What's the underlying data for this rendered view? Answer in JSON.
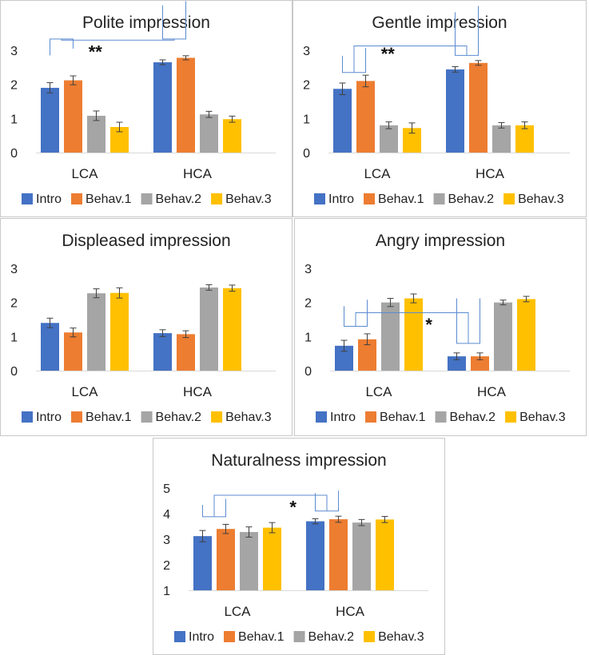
{
  "colors": {
    "Intro": "#4472C4",
    "Behav.1": "#ED7D31",
    "Behav.2": "#A5A5A5",
    "Behav.3": "#FFC000",
    "bracket": "#5B8BD0",
    "errorbar": "#404040"
  },
  "chart_data": [
    {
      "type": "bar",
      "title": "Polite impression",
      "categories": [
        "LCA",
        "HCA"
      ],
      "ylim": [
        0,
        3
      ],
      "yticks": [
        0,
        1,
        2,
        3
      ],
      "legend_position": "bottom",
      "series": [
        {
          "name": "Intro",
          "values": [
            1.9,
            2.65
          ],
          "errors": [
            0.15,
            0.07
          ]
        },
        {
          "name": "Behav.1",
          "values": [
            2.12,
            2.78
          ],
          "errors": [
            0.13,
            0.06
          ]
        },
        {
          "name": "Behav.2",
          "values": [
            1.08,
            1.12
          ],
          "errors": [
            0.14,
            0.09
          ]
        },
        {
          "name": "Behav.3",
          "values": [
            0.75,
            0.98
          ],
          "errors": [
            0.14,
            0.09
          ]
        }
      ],
      "annotation": {
        "text": "**",
        "ga": 0.8,
        "gb": 1.6,
        "ma": 3.33,
        "mb": 3.33,
        "bt": 3.3,
        "sx": 0.6,
        "sy": 3.1
      }
    },
    {
      "type": "bar",
      "title": "Gentle impression",
      "categories": [
        "LCA",
        "HCA"
      ],
      "ylim": [
        0,
        3
      ],
      "yticks": [
        0,
        1,
        2,
        3
      ],
      "legend_position": "bottom",
      "series": [
        {
          "name": "Intro",
          "values": [
            1.87,
            2.44
          ],
          "errors": [
            0.17,
            0.08
          ]
        },
        {
          "name": "Behav.1",
          "values": [
            2.1,
            2.63
          ],
          "errors": [
            0.17,
            0.07
          ]
        },
        {
          "name": "Behav.2",
          "values": [
            0.8,
            0.8
          ],
          "errors": [
            0.1,
            0.08
          ]
        },
        {
          "name": "Behav.3",
          "values": [
            0.72,
            0.8
          ],
          "errors": [
            0.15,
            0.1
          ]
        }
      ],
      "annotation": {
        "text": "**",
        "ga": 0.8,
        "gb": 1.6,
        "ma": 2.35,
        "mb": 2.85,
        "bt": 3.13,
        "sx": 0.6,
        "sy": 3.05
      }
    },
    {
      "type": "bar",
      "title": "Displeased impression",
      "categories": [
        "LCA",
        "HCA"
      ],
      "ylim": [
        0,
        3
      ],
      "yticks": [
        0,
        1,
        2,
        3
      ],
      "legend_position": "bottom",
      "series": [
        {
          "name": "Intro",
          "values": [
            1.4,
            1.1
          ],
          "errors": [
            0.14,
            0.1
          ]
        },
        {
          "name": "Behav.1",
          "values": [
            1.12,
            1.07
          ],
          "errors": [
            0.13,
            0.1
          ]
        },
        {
          "name": "Behav.2",
          "values": [
            2.27,
            2.44
          ],
          "errors": [
            0.13,
            0.08
          ]
        },
        {
          "name": "Behav.3",
          "values": [
            2.28,
            2.42
          ],
          "errors": [
            0.15,
            0.09
          ]
        }
      ]
    },
    {
      "type": "bar",
      "title": "Angry impression",
      "categories": [
        "LCA",
        "HCA"
      ],
      "ylim": [
        0,
        3
      ],
      "yticks": [
        0,
        1,
        2,
        3
      ],
      "legend_position": "bottom",
      "series": [
        {
          "name": "Intro",
          "values": [
            0.73,
            0.42
          ],
          "errors": [
            0.16,
            0.1
          ]
        },
        {
          "name": "Behav.1",
          "values": [
            0.92,
            0.42
          ],
          "errors": [
            0.16,
            0.1
          ]
        },
        {
          "name": "Behav.2",
          "values": [
            2.0,
            2.0
          ],
          "errors": [
            0.12,
            0.07
          ]
        },
        {
          "name": "Behav.3",
          "values": [
            2.12,
            2.1
          ],
          "errors": [
            0.13,
            0.08
          ]
        }
      ],
      "annotation": {
        "text": "*",
        "ga": 1.0,
        "gb": 1.6,
        "ma": 1.3,
        "mb": 0.8,
        "bt": 1.7,
        "sx": 1.3,
        "sy": 1.5
      }
    },
    {
      "type": "bar",
      "title": "Naturalness impression",
      "categories": [
        "LCA",
        "HCA"
      ],
      "ylim": [
        1,
        5
      ],
      "yticks": [
        1,
        2,
        3,
        4,
        5
      ],
      "legend_position": "bottom",
      "series": [
        {
          "name": "Intro",
          "values": [
            3.12,
            3.7
          ],
          "errors": [
            0.22,
            0.1
          ]
        },
        {
          "name": "Behav.1",
          "values": [
            3.4,
            3.78
          ],
          "errors": [
            0.18,
            0.12
          ]
        },
        {
          "name": "Behav.2",
          "values": [
            3.28,
            3.65
          ],
          "errors": [
            0.2,
            0.12
          ]
        },
        {
          "name": "Behav.3",
          "values": [
            3.45,
            3.77
          ],
          "errors": [
            0.2,
            0.12
          ]
        }
      ],
      "annotation": {
        "text": "*",
        "ga": 1.0,
        "gb": 1.0,
        "ma": 3.88,
        "mb": 4.1,
        "bt": 4.72,
        "sx": 1.4,
        "sy": 4.45
      }
    }
  ]
}
